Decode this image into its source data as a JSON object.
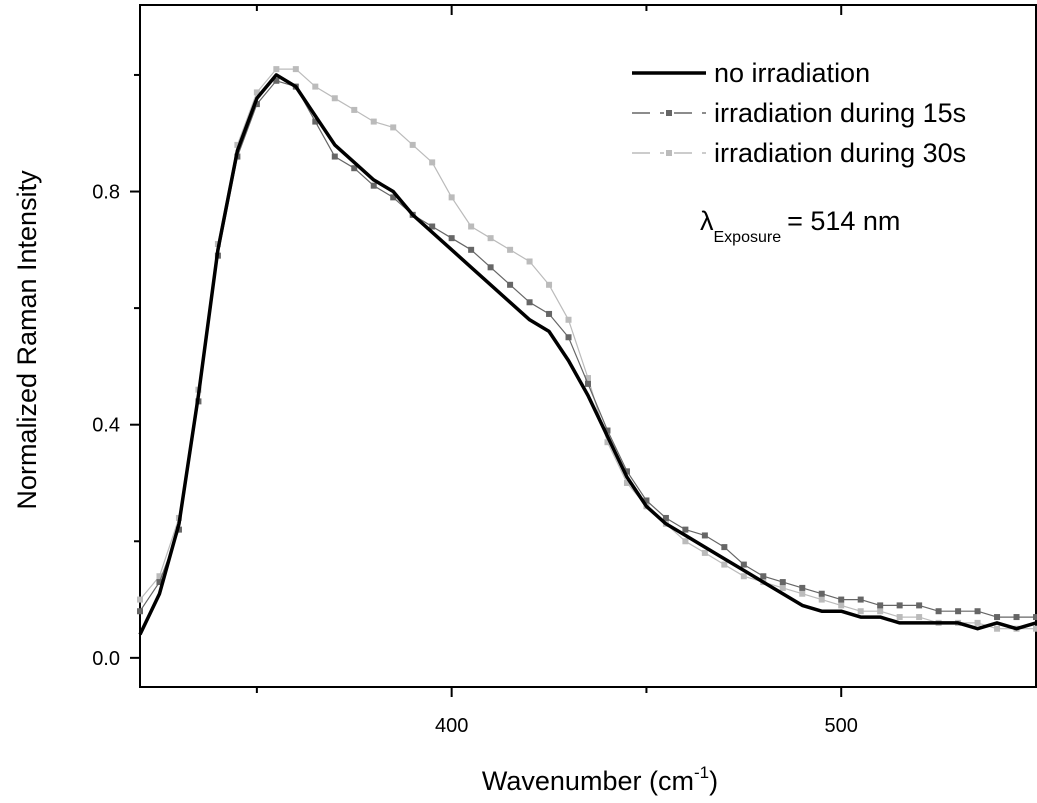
{
  "chart_data": {
    "type": "line",
    "xlabel": "Wavenumber (cm",
    "xlabel_sup": "-1",
    "xlabel_tail": ")",
    "ylabel": "Normalized Raman Intensity",
    "xlim": [
      320,
      550
    ],
    "ylim": [
      -0.05,
      1.12
    ],
    "x_major_ticks": [
      400,
      500
    ],
    "x_minor_ticks": [
      350,
      450
    ],
    "y_major_ticks": [
      0.0,
      0.4,
      0.8
    ],
    "y_minor_ticks": [
      0.2,
      0.6,
      1.0
    ],
    "x_tick_labels": [
      "400",
      "500"
    ],
    "y_tick_labels": [
      "0.0",
      "0.4",
      "0.8"
    ],
    "grid": false,
    "legend_position": "top-right",
    "annotation": {
      "symbol": "λ",
      "subscript": "Exposure",
      "text": "= 514 nm"
    },
    "series": [
      {
        "name": "no irradiation",
        "color": "#000000",
        "style": "thick-solid",
        "x": [
          320,
          325,
          330,
          335,
          340,
          345,
          350,
          355,
          360,
          365,
          370,
          375,
          380,
          385,
          390,
          395,
          400,
          405,
          410,
          415,
          420,
          425,
          430,
          435,
          440,
          445,
          450,
          455,
          460,
          465,
          470,
          475,
          480,
          485,
          490,
          495,
          500,
          505,
          510,
          515,
          520,
          525,
          530,
          535,
          540,
          545,
          550
        ],
        "y": [
          0.04,
          0.11,
          0.23,
          0.45,
          0.7,
          0.87,
          0.96,
          1.0,
          0.98,
          0.93,
          0.88,
          0.85,
          0.82,
          0.8,
          0.76,
          0.73,
          0.7,
          0.67,
          0.64,
          0.61,
          0.58,
          0.56,
          0.51,
          0.45,
          0.38,
          0.31,
          0.26,
          0.23,
          0.21,
          0.19,
          0.17,
          0.15,
          0.13,
          0.11,
          0.09,
          0.08,
          0.08,
          0.07,
          0.07,
          0.06,
          0.06,
          0.06,
          0.06,
          0.05,
          0.06,
          0.05,
          0.06
        ]
      },
      {
        "name": "irradiation during 15s",
        "color": "#666666",
        "style": "dash-dot-markers",
        "x": [
          320,
          325,
          330,
          335,
          340,
          345,
          350,
          355,
          360,
          365,
          370,
          375,
          380,
          385,
          390,
          395,
          400,
          405,
          410,
          415,
          420,
          425,
          430,
          435,
          440,
          445,
          450,
          455,
          460,
          465,
          470,
          475,
          480,
          485,
          490,
          495,
          500,
          505,
          510,
          515,
          520,
          525,
          530,
          535,
          540,
          545,
          550
        ],
        "y": [
          0.08,
          0.13,
          0.22,
          0.44,
          0.69,
          0.86,
          0.95,
          0.99,
          0.98,
          0.92,
          0.86,
          0.84,
          0.81,
          0.79,
          0.76,
          0.74,
          0.72,
          0.7,
          0.67,
          0.64,
          0.61,
          0.59,
          0.55,
          0.47,
          0.39,
          0.32,
          0.27,
          0.24,
          0.22,
          0.21,
          0.19,
          0.16,
          0.14,
          0.13,
          0.12,
          0.11,
          0.1,
          0.1,
          0.09,
          0.09,
          0.09,
          0.08,
          0.08,
          0.08,
          0.07,
          0.07,
          0.07
        ]
      },
      {
        "name": "irradiation during 30s",
        "color": "#bbbbbb",
        "style": "dash-dot-markers",
        "x": [
          320,
          325,
          330,
          335,
          340,
          345,
          350,
          355,
          360,
          365,
          370,
          375,
          380,
          385,
          390,
          395,
          400,
          405,
          410,
          415,
          420,
          425,
          430,
          435,
          440,
          445,
          450,
          455,
          460,
          465,
          470,
          475,
          480,
          485,
          490,
          495,
          500,
          505,
          510,
          515,
          520,
          525,
          530,
          535,
          540,
          545,
          550
        ],
        "y": [
          0.1,
          0.14,
          0.24,
          0.46,
          0.71,
          0.88,
          0.97,
          1.01,
          1.01,
          0.98,
          0.96,
          0.94,
          0.92,
          0.91,
          0.88,
          0.85,
          0.79,
          0.74,
          0.72,
          0.7,
          0.68,
          0.64,
          0.58,
          0.48,
          0.37,
          0.3,
          0.26,
          0.23,
          0.2,
          0.18,
          0.16,
          0.14,
          0.13,
          0.12,
          0.11,
          0.1,
          0.09,
          0.08,
          0.08,
          0.07,
          0.07,
          0.06,
          0.06,
          0.06,
          0.05,
          0.05,
          0.05
        ]
      }
    ]
  }
}
